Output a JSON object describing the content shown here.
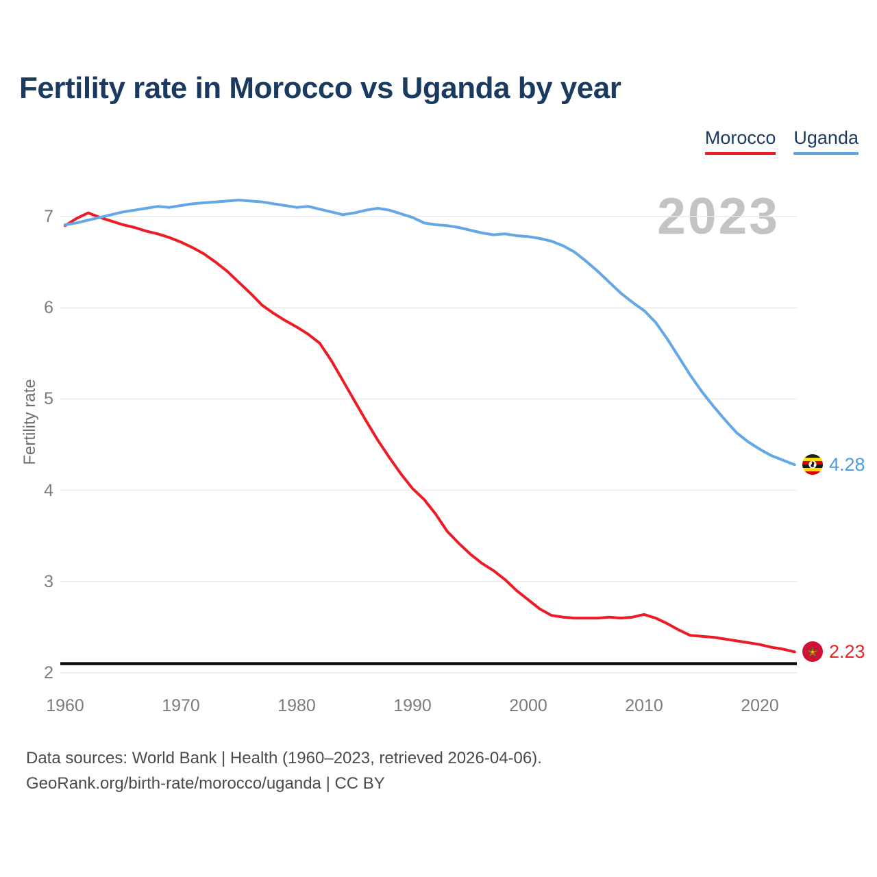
{
  "title": "Fertility rate in Morocco vs Uganda by year",
  "legend": [
    {
      "label": "Morocco",
      "color": "#ed1c24"
    },
    {
      "label": "Uganda",
      "color": "#63a7e5"
    }
  ],
  "watermark": "2023",
  "y_axis": {
    "label": "Fertility rate",
    "ticks": [
      7,
      6,
      5,
      4,
      3,
      2
    ]
  },
  "x_axis": {
    "ticks": [
      1960,
      1970,
      1980,
      1990,
      2000,
      2010,
      2020
    ]
  },
  "reference_line": {
    "value": 2.1,
    "color": "#0d0d0d"
  },
  "end_labels": [
    {
      "series": "Uganda",
      "value": "4.28",
      "color": "#4f9be0",
      "flag_icon": "uganda-flag"
    },
    {
      "series": "Morocco",
      "value": "2.23",
      "color": "#e8262a",
      "flag_icon": "morocco-flag"
    }
  ],
  "footer": {
    "line1": "Data sources: World Bank | Health (1960–2023, retrieved 2026-04-06).",
    "line2": "GeoRank.org/birth-rate/morocco/uganda | CC BY"
  },
  "chart_data": {
    "type": "line",
    "title": "Fertility rate in Morocco vs Uganda by year",
    "xlabel": "",
    "ylabel": "Fertility rate",
    "x_range": [
      1960,
      2023
    ],
    "ylim": [
      2,
      7.3
    ],
    "grid": "horizontal-only",
    "legend_position": "top-right",
    "annotations": {
      "watermark_year": "2023",
      "replacement_level_line": 2.1
    },
    "x": [
      1960,
      1961,
      1962,
      1963,
      1964,
      1965,
      1966,
      1967,
      1968,
      1969,
      1970,
      1971,
      1972,
      1973,
      1974,
      1975,
      1976,
      1977,
      1978,
      1979,
      1980,
      1981,
      1982,
      1983,
      1984,
      1985,
      1986,
      1987,
      1988,
      1989,
      1990,
      1991,
      1992,
      1993,
      1994,
      1995,
      1996,
      1997,
      1998,
      1999,
      2000,
      2001,
      2002,
      2003,
      2004,
      2005,
      2006,
      2007,
      2008,
      2009,
      2010,
      2011,
      2012,
      2013,
      2014,
      2015,
      2016,
      2017,
      2018,
      2019,
      2020,
      2021,
      2022,
      2023
    ],
    "series": [
      {
        "name": "Morocco",
        "color": "#ed1c24",
        "end_value": 2.23,
        "values": [
          6.9,
          6.98,
          7.04,
          6.99,
          6.95,
          6.91,
          6.88,
          6.84,
          6.81,
          6.77,
          6.72,
          6.66,
          6.59,
          6.5,
          6.4,
          6.28,
          6.16,
          6.03,
          5.94,
          5.86,
          5.79,
          5.71,
          5.61,
          5.42,
          5.2,
          4.98,
          4.76,
          4.55,
          4.36,
          4.18,
          4.02,
          3.9,
          3.74,
          3.55,
          3.42,
          3.3,
          3.2,
          3.12,
          3.02,
          2.9,
          2.8,
          2.7,
          2.63,
          2.61,
          2.6,
          2.6,
          2.6,
          2.61,
          2.6,
          2.61,
          2.64,
          2.6,
          2.54,
          2.47,
          2.41,
          2.4,
          2.39,
          2.37,
          2.35,
          2.33,
          2.31,
          2.28,
          2.26,
          2.23
        ]
      },
      {
        "name": "Uganda",
        "color": "#63a7e5",
        "end_value": 4.28,
        "values": [
          6.91,
          6.93,
          6.96,
          6.99,
          7.02,
          7.05,
          7.07,
          7.09,
          7.11,
          7.1,
          7.12,
          7.14,
          7.15,
          7.16,
          7.17,
          7.18,
          7.17,
          7.16,
          7.14,
          7.12,
          7.1,
          7.11,
          7.08,
          7.05,
          7.02,
          7.04,
          7.07,
          7.09,
          7.07,
          7.03,
          6.99,
          6.93,
          6.91,
          6.9,
          6.88,
          6.85,
          6.82,
          6.8,
          6.81,
          6.79,
          6.78,
          6.76,
          6.73,
          6.68,
          6.61,
          6.51,
          6.4,
          6.28,
          6.16,
          6.06,
          5.97,
          5.84,
          5.66,
          5.46,
          5.26,
          5.08,
          4.92,
          4.77,
          4.63,
          4.53,
          4.45,
          4.38,
          4.33,
          4.28
        ]
      }
    ]
  }
}
